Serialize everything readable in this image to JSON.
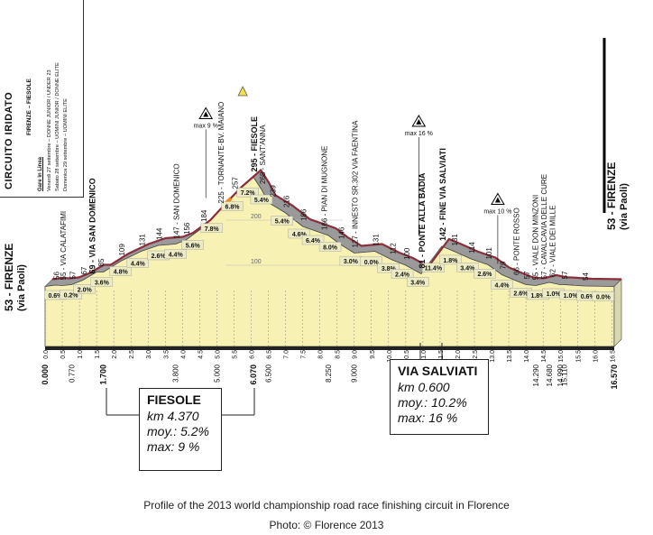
{
  "sidebar": {
    "title": "CIRCUITO IRIDATO",
    "route": "FIRENZE – FIESOLE",
    "races_header": "Gare in Linea",
    "race_lines": [
      "Venerdì 27 settembre – DONNE JUNIOR / UNDER 23",
      "Sabato 28 settembre – UOMINI JUNIOR / DONNE ELITE",
      "Domenica 29 settembre – UOMINI ELITE"
    ]
  },
  "chart_data": {
    "type": "area",
    "title": "",
    "xlabel": "",
    "ylabel": "",
    "xlim": [
      0,
      16.57
    ],
    "ylim": [
      0,
      320
    ],
    "altitude_gridlines": [
      100,
      200
    ],
    "profile": [
      {
        "x": 0.0,
        "y": 53
      },
      {
        "x": 0.3,
        "y": 56
      },
      {
        "x": 0.5,
        "y": 55
      },
      {
        "x": 0.77,
        "y": 57
      },
      {
        "x": 1.1,
        "y": 67
      },
      {
        "x": 1.5,
        "y": 85
      },
      {
        "x": 1.7,
        "y": 85
      },
      {
        "x": 2.2,
        "y": 109
      },
      {
        "x": 2.8,
        "y": 131
      },
      {
        "x": 3.3,
        "y": 144
      },
      {
        "x": 3.8,
        "y": 147
      },
      {
        "x": 4.1,
        "y": 156
      },
      {
        "x": 4.6,
        "y": 184
      },
      {
        "x": 5.1,
        "y": 225
      },
      {
        "x": 5.5,
        "y": 257
      },
      {
        "x": 6.07,
        "y": 295
      },
      {
        "x": 6.3,
        "y": 268
      },
      {
        "x": 6.5,
        "y": 239
      },
      {
        "x": 7.0,
        "y": 216
      },
      {
        "x": 7.5,
        "y": 186
      },
      {
        "x": 8.25,
        "y": 166
      },
      {
        "x": 8.6,
        "y": 146
      },
      {
        "x": 9.0,
        "y": 127
      },
      {
        "x": 9.6,
        "y": 131
      },
      {
        "x": 10.1,
        "y": 112
      },
      {
        "x": 10.5,
        "y": 100
      },
      {
        "x": 10.95,
        "y": 81
      },
      {
        "x": 11.55,
        "y": 142
      },
      {
        "x": 11.9,
        "y": 131
      },
      {
        "x": 12.4,
        "y": 114
      },
      {
        "x": 12.9,
        "y": 101
      },
      {
        "x": 13.3,
        "y": 79
      },
      {
        "x": 13.7,
        "y": 66
      },
      {
        "x": 14.0,
        "y": 57
      },
      {
        "x": 14.29,
        "y": 55
      },
      {
        "x": 14.68,
        "y": 62
      },
      {
        "x": 14.99,
        "y": 57
      },
      {
        "x": 15.11,
        "y": 57
      },
      {
        "x": 15.7,
        "y": 54
      },
      {
        "x": 16.57,
        "y": 53
      }
    ],
    "km_ticks": [
      "0.0",
      "0.5",
      "1.0",
      "1.5",
      "2.0",
      "2.5",
      "3.0",
      "3.5",
      "4.0",
      "4.5",
      "5.0",
      "5.5",
      "6.0",
      "6.5",
      "7.0",
      "7.5",
      "8.0",
      "8.5",
      "9.0",
      "9.5",
      "10.0",
      "10.5",
      "11.0",
      "11.5",
      "12.0",
      "12.5",
      "13.0",
      "13.5",
      "14.0",
      "14.5",
      "15.0",
      "15.5",
      "16.0",
      "16.5"
    ],
    "distance_markers": [
      {
        "km": 0.0,
        "label": "0.000",
        "bold": true
      },
      {
        "km": 0.77,
        "label": "0.770",
        "bold": false
      },
      {
        "km": 1.7,
        "label": "1.700",
        "bold": true
      },
      {
        "km": 3.8,
        "label": "3.800",
        "bold": false
      },
      {
        "km": 5.0,
        "label": "5.000",
        "bold": false
      },
      {
        "km": 6.07,
        "label": "6.070",
        "bold": true
      },
      {
        "km": 6.5,
        "label": "6.500",
        "bold": false
      },
      {
        "km": 8.25,
        "label": "8.250",
        "bold": false
      },
      {
        "km": 9.0,
        "label": "9.000",
        "bold": false
      },
      {
        "km": 10.95,
        "label": "10.950",
        "bold": true
      },
      {
        "km": 11.55,
        "label": "11.550",
        "bold": true
      },
      {
        "km": 14.29,
        "label": "14.290",
        "bold": false
      },
      {
        "km": 14.68,
        "label": "14.680",
        "bold": false
      },
      {
        "km": 14.99,
        "label": "14.990",
        "bold": false
      },
      {
        "km": 15.11,
        "label": "15.110",
        "bold": false
      },
      {
        "km": 16.57,
        "label": "16.570",
        "bold": true
      }
    ],
    "gradients": [
      {
        "km": 0.3,
        "label": "0.6%"
      },
      {
        "km": 0.75,
        "label": "0.2%"
      },
      {
        "km": 1.15,
        "label": "2.0%"
      },
      {
        "km": 1.65,
        "label": "3.6%"
      },
      {
        "km": 2.2,
        "label": "4.8%"
      },
      {
        "km": 2.7,
        "label": "4.4%"
      },
      {
        "km": 3.3,
        "label": "2.6%"
      },
      {
        "km": 3.8,
        "label": "4.4%"
      },
      {
        "km": 4.3,
        "label": "5.6%"
      },
      {
        "km": 4.85,
        "label": "7.8%"
      },
      {
        "km": 5.45,
        "label": "6.8%"
      },
      {
        "km": 5.9,
        "label": "7.2%"
      },
      {
        "km": 6.3,
        "label": "5.4%"
      },
      {
        "km": 6.9,
        "label": "5.4%"
      },
      {
        "km": 7.4,
        "label": "4.6%"
      },
      {
        "km": 7.8,
        "label": "6.4%"
      },
      {
        "km": 8.3,
        "label": "8.0%"
      },
      {
        "km": 8.9,
        "label": "3.0%"
      },
      {
        "km": 9.5,
        "label": "0.0%"
      },
      {
        "km": 10.0,
        "label": "3.8%"
      },
      {
        "km": 10.4,
        "label": "2.4%"
      },
      {
        "km": 10.85,
        "label": "3.4%"
      },
      {
        "km": 11.3,
        "label": "11.4%"
      },
      {
        "km": 11.8,
        "label": "1.8%"
      },
      {
        "km": 12.3,
        "label": "3.4%"
      },
      {
        "km": 12.8,
        "label": "2.6%"
      },
      {
        "km": 13.3,
        "label": "4.4%"
      },
      {
        "km": 13.85,
        "label": "2.6%"
      },
      {
        "km": 14.35,
        "label": "1.8%"
      },
      {
        "km": 14.8,
        "label": "1.0%"
      },
      {
        "km": 15.3,
        "label": "1.0%"
      },
      {
        "km": 15.8,
        "label": "0.6%"
      },
      {
        "km": 16.25,
        "label": "0.0%"
      }
    ],
    "place_labels": [
      {
        "km": 0.0,
        "alt": 53,
        "text": "53 - FIRENZE",
        "sub": "(via Paoli)",
        "bold": true
      },
      {
        "km": 0.3,
        "alt": 56,
        "text": "56",
        "sub": "",
        "bold": false
      },
      {
        "km": 0.5,
        "alt": 55,
        "text": "55 - VIA CALATAFIMI",
        "sub": "",
        "bold": false
      },
      {
        "km": 0.77,
        "alt": 57,
        "text": "57",
        "sub": "",
        "bold": false
      },
      {
        "km": 1.1,
        "alt": 67,
        "text": "67",
        "sub": "",
        "bold": false
      },
      {
        "km": 1.35,
        "alt": 69,
        "text": "69 - VIA SAN DOMENICO",
        "sub": "",
        "bold": true
      },
      {
        "km": 1.6,
        "alt": 85,
        "text": "85",
        "sub": "",
        "bold": false
      },
      {
        "km": 2.2,
        "alt": 109,
        "text": "109",
        "sub": "",
        "bold": false
      },
      {
        "km": 2.8,
        "alt": 131,
        "text": "131",
        "sub": "",
        "bold": false
      },
      {
        "km": 3.3,
        "alt": 144,
        "text": "144",
        "sub": "",
        "bold": false
      },
      {
        "km": 3.8,
        "alt": 147,
        "text": "147 - SAN DOMENICO",
        "sub": "",
        "bold": false
      },
      {
        "km": 4.1,
        "alt": 156,
        "text": "156",
        "sub": "",
        "bold": false
      },
      {
        "km": 4.6,
        "alt": 184,
        "text": "184",
        "sub": "",
        "bold": false
      },
      {
        "km": 5.1,
        "alt": 225,
        "text": "225 - TORNANTE-BV. MAIANO",
        "sub": "",
        "bold": false
      },
      {
        "km": 5.5,
        "alt": 257,
        "text": "257",
        "sub": "",
        "bold": false
      },
      {
        "km": 6.07,
        "alt": 295,
        "text": "295 - FIESOLE",
        "sub": "",
        "bold": true
      },
      {
        "km": 6.3,
        "alt": 268,
        "text": "268 - SANT'ANNA",
        "sub": "",
        "bold": false
      },
      {
        "km": 6.6,
        "alt": 239,
        "text": "239",
        "sub": "",
        "bold": false
      },
      {
        "km": 7.0,
        "alt": 216,
        "text": "216",
        "sub": "",
        "bold": false
      },
      {
        "km": 7.5,
        "alt": 186,
        "text": "186",
        "sub": "",
        "bold": false
      },
      {
        "km": 8.1,
        "alt": 166,
        "text": "166 - PIAN DI MUGNONE",
        "sub": "",
        "bold": false
      },
      {
        "km": 8.6,
        "alt": 146,
        "text": "146",
        "sub": "",
        "bold": false
      },
      {
        "km": 9.0,
        "alt": 127,
        "text": "127 - INNESTO SR.302 VIA FAENTINA",
        "sub": "",
        "bold": false
      },
      {
        "km": 9.6,
        "alt": 131,
        "text": "131",
        "sub": "",
        "bold": false
      },
      {
        "km": 10.1,
        "alt": 112,
        "text": "112",
        "sub": "",
        "bold": false
      },
      {
        "km": 10.5,
        "alt": 100,
        "text": "100",
        "sub": "",
        "bold": false
      },
      {
        "km": 10.95,
        "alt": 81,
        "text": "81 - PONTE ALLA BADIA",
        "sub": "",
        "bold": true
      },
      {
        "km": 11.55,
        "alt": 142,
        "text": "142 - FINE VIA SALVIATI",
        "sub": "",
        "bold": true
      },
      {
        "km": 11.9,
        "alt": 131,
        "text": "131",
        "sub": "",
        "bold": false
      },
      {
        "km": 12.4,
        "alt": 114,
        "text": "114",
        "sub": "",
        "bold": false
      },
      {
        "km": 12.9,
        "alt": 101,
        "text": "101",
        "sub": "",
        "bold": false
      },
      {
        "km": 13.3,
        "alt": 79,
        "text": "79",
        "sub": "",
        "bold": false
      },
      {
        "km": 13.7,
        "alt": 66,
        "text": "66 - PONTE ROSSO",
        "sub": "",
        "bold": false
      },
      {
        "km": 14.0,
        "alt": 57,
        "text": "57",
        "sub": "",
        "bold": false
      },
      {
        "km": 14.25,
        "alt": 55,
        "text": "55 - VIALE DON MINZONI",
        "sub": "",
        "bold": false
      },
      {
        "km": 14.5,
        "alt": 57,
        "text": "57 - CAVALCAVIA DELLE CURE",
        "sub": "",
        "bold": false
      },
      {
        "km": 14.75,
        "alt": 62,
        "text": "62 - VIALE DEI MILLE",
        "sub": "",
        "bold": false
      },
      {
        "km": 15.1,
        "alt": 57,
        "text": "57",
        "sub": "",
        "bold": false
      },
      {
        "km": 15.7,
        "alt": 54,
        "text": "54",
        "sub": "",
        "bold": false
      },
      {
        "km": 16.57,
        "alt": 53,
        "text": "53 - FIRENZE",
        "sub": "(via Paoli)",
        "bold": true
      }
    ],
    "climb_markers": [
      {
        "km": 5.1,
        "alt": 225,
        "text": "max 9 %"
      },
      {
        "km": 11.3,
        "alt": 142,
        "text": "max 16 %"
      },
      {
        "km": 13.6,
        "alt": 79,
        "text": "max 10 %"
      }
    ],
    "gpm_marker_km": 6.07,
    "colors": {
      "hill": "#f7f1b3",
      "hill_flat": "#ecebc4",
      "road": "#8b2e3c",
      "road_shadow": "#9a9a9a",
      "highlight": "#f08a1c",
      "gpm": "#f4e04c"
    }
  },
  "boxes": {
    "fiesole": {
      "title": "FIESOLE",
      "km": "km 4.370",
      "moy": "moy.: 5.2%",
      "max": "max: 9 %"
    },
    "salviati": {
      "title": "VIA SALVIATI",
      "km": "km 0.600",
      "moy": "moy.: 10.2%",
      "max": "max: 16 %"
    }
  },
  "caption": "Profile of the 2013 world championship road race finishing circuit in Florence",
  "credit": "Photo: © Florence 2013"
}
